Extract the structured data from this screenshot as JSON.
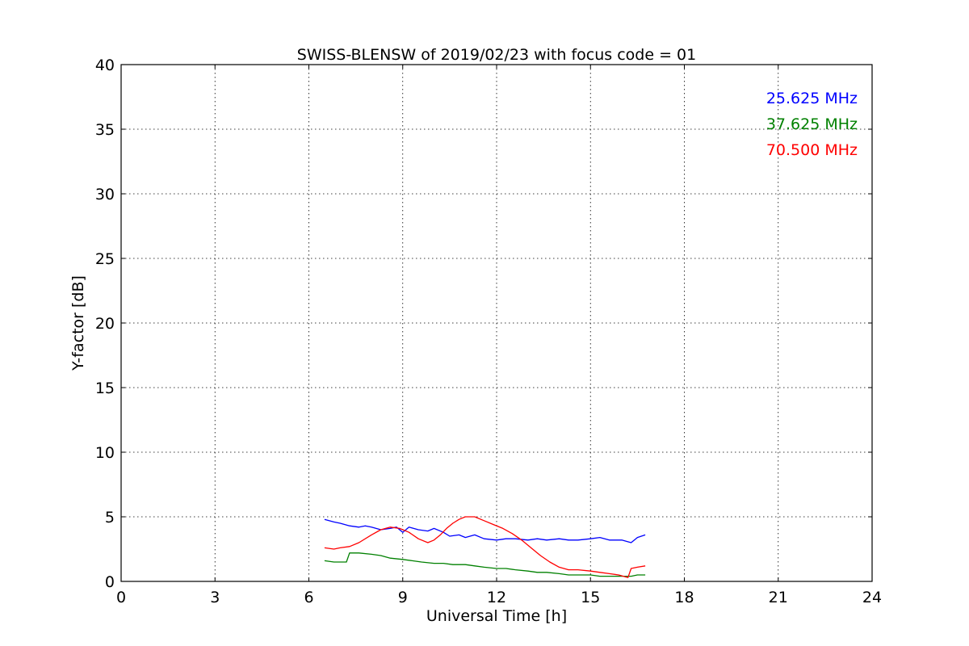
{
  "chart_data": {
    "type": "line",
    "title": "SWISS-BLENSW of 2019/02/23 with focus code = 01",
    "xlabel": "Universal Time [h]",
    "ylabel": "Y-factor [dB]",
    "xlim": [
      0,
      24
    ],
    "ylim": [
      0,
      40
    ],
    "xticks": [
      0,
      3,
      6,
      9,
      12,
      15,
      18,
      21,
      24
    ],
    "yticks": [
      0,
      5,
      10,
      15,
      20,
      25,
      30,
      35,
      40
    ],
    "grid": true,
    "legend_position": "top-right",
    "series": [
      {
        "name": "25.625 MHz",
        "color": "#0000ff",
        "x": [
          6.5,
          6.8,
          7.0,
          7.3,
          7.6,
          7.8,
          8.0,
          8.3,
          8.6,
          8.8,
          8.9,
          9.0,
          9.2,
          9.5,
          9.8,
          10.0,
          10.3,
          10.5,
          10.8,
          11.0,
          11.3,
          11.6,
          12.0,
          12.3,
          12.6,
          13.0,
          13.3,
          13.6,
          14.0,
          14.3,
          14.6,
          15.0,
          15.3,
          15.6,
          16.0,
          16.3,
          16.5,
          16.75
        ],
        "y": [
          4.8,
          4.6,
          4.5,
          4.3,
          4.2,
          4.3,
          4.2,
          4.0,
          4.1,
          4.2,
          4.0,
          3.8,
          4.2,
          4.0,
          3.9,
          4.1,
          3.8,
          3.5,
          3.6,
          3.4,
          3.6,
          3.3,
          3.2,
          3.3,
          3.3,
          3.2,
          3.3,
          3.2,
          3.3,
          3.2,
          3.2,
          3.3,
          3.4,
          3.2,
          3.2,
          3.0,
          3.4,
          3.6
        ]
      },
      {
        "name": "37.625 MHz",
        "color": "#008000",
        "x": [
          6.5,
          6.8,
          7.0,
          7.2,
          7.3,
          7.6,
          8.0,
          8.3,
          8.6,
          9.0,
          9.3,
          9.6,
          10.0,
          10.3,
          10.6,
          11.0,
          11.3,
          11.6,
          12.0,
          12.3,
          12.6,
          13.0,
          13.3,
          13.6,
          14.0,
          14.3,
          14.6,
          15.0,
          15.3,
          15.6,
          16.0,
          16.3,
          16.5,
          16.75
        ],
        "y": [
          1.6,
          1.5,
          1.5,
          1.5,
          2.2,
          2.2,
          2.1,
          2.0,
          1.8,
          1.7,
          1.6,
          1.5,
          1.4,
          1.4,
          1.3,
          1.3,
          1.2,
          1.1,
          1.0,
          1.0,
          0.9,
          0.8,
          0.7,
          0.7,
          0.6,
          0.5,
          0.5,
          0.5,
          0.4,
          0.4,
          0.4,
          0.4,
          0.5,
          0.5
        ]
      },
      {
        "name": "70.500 MHz",
        "color": "#ff0000",
        "x": [
          6.5,
          6.8,
          7.0,
          7.3,
          7.6,
          8.0,
          8.3,
          8.6,
          8.9,
          9.2,
          9.5,
          9.8,
          10.0,
          10.2,
          10.4,
          10.6,
          10.8,
          11.0,
          11.3,
          11.6,
          11.9,
          12.2,
          12.5,
          12.8,
          13.1,
          13.4,
          13.7,
          14.0,
          14.3,
          14.6,
          15.0,
          15.3,
          15.6,
          15.9,
          16.2,
          16.3,
          16.5,
          16.75
        ],
        "y": [
          2.6,
          2.5,
          2.6,
          2.7,
          3.0,
          3.6,
          4.0,
          4.2,
          4.1,
          3.8,
          3.3,
          3.0,
          3.2,
          3.6,
          4.1,
          4.5,
          4.8,
          5.0,
          5.0,
          4.7,
          4.4,
          4.1,
          3.7,
          3.2,
          2.6,
          2.0,
          1.5,
          1.1,
          0.9,
          0.9,
          0.8,
          0.7,
          0.6,
          0.5,
          0.3,
          1.0,
          1.1,
          1.2
        ]
      }
    ]
  }
}
